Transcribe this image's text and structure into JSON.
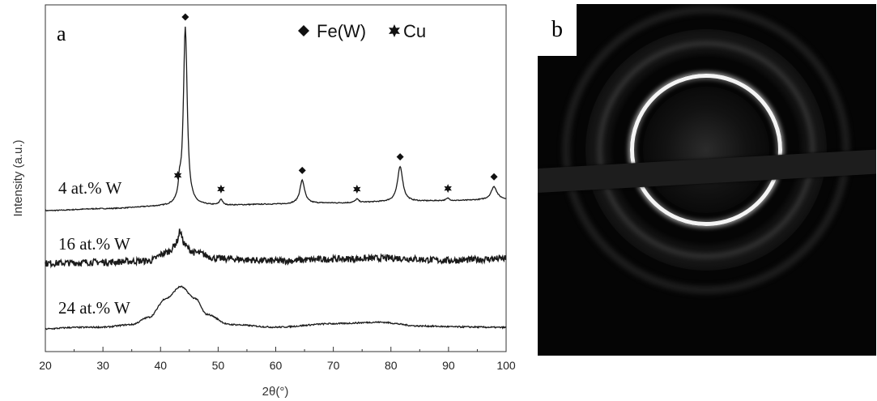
{
  "panel_a": {
    "label": "a",
    "legend": {
      "fe_label": "Fe(W)",
      "cu_label": "Cu",
      "fe_marker": "diamond",
      "cu_marker": "six-point-star"
    },
    "xlabel": "2θ(°)",
    "ylabel": "Intensity (a.u.)",
    "xticks": [
      "20",
      "30",
      "40",
      "50",
      "60",
      "70",
      "80",
      "90",
      "100"
    ],
    "series_labels": [
      "4 at.% W",
      "16 at.% W",
      "24 at.% W"
    ]
  },
  "panel_b": {
    "label": "b",
    "description_icon": "saed-diffraction-pattern"
  },
  "chart_data": {
    "type": "line",
    "title": "",
    "xlabel": "2θ(°)",
    "ylabel": "Intensity (a.u.)",
    "xlim": [
      20,
      100
    ],
    "grid": false,
    "legend_placement": "top-right",
    "series": [
      {
        "name": "4 at.% W",
        "baseline_points": [
          [
            20,
            0.0
          ],
          [
            30,
            0.08
          ],
          [
            40,
            0.17
          ],
          [
            50,
            0.22
          ],
          [
            60,
            0.27
          ],
          [
            70,
            0.32
          ],
          [
            80,
            0.37
          ],
          [
            90,
            0.42
          ],
          [
            100,
            0.48
          ]
        ],
        "peaks": [
          {
            "x": 43.3,
            "height": 0.6,
            "width": 0.25,
            "phase": "Cu"
          },
          {
            "x": 44.3,
            "height": 7.6,
            "width": 0.4,
            "phase": "Fe(W)"
          },
          {
            "x": 50.5,
            "height": 0.25,
            "width": 0.3,
            "phase": "Cu"
          },
          {
            "x": 64.6,
            "height": 1.0,
            "width": 0.5,
            "phase": "Fe(W)"
          },
          {
            "x": 74.1,
            "height": 0.15,
            "width": 0.35,
            "phase": "Cu"
          },
          {
            "x": 81.6,
            "height": 1.5,
            "width": 0.55,
            "phase": "Fe(W)"
          },
          {
            "x": 89.9,
            "height": 0.1,
            "width": 0.35,
            "phase": "Cu"
          },
          {
            "x": 97.9,
            "height": 0.55,
            "width": 0.6,
            "phase": "Fe(W)"
          }
        ]
      },
      {
        "name": "16 at.% W",
        "baseline_points": [
          [
            20,
            0.0
          ],
          [
            30,
            0.05
          ],
          [
            38,
            0.1
          ],
          [
            41,
            0.45
          ],
          [
            43.3,
            0.85
          ],
          [
            46,
            0.45
          ],
          [
            50,
            0.2
          ],
          [
            60,
            0.1
          ],
          [
            70,
            0.18
          ],
          [
            80,
            0.22
          ],
          [
            90,
            0.12
          ],
          [
            100,
            0.2
          ]
        ],
        "peaks": [
          {
            "x": 43.4,
            "height": 0.55,
            "width": 0.3,
            "phase": "Cu"
          }
        ]
      },
      {
        "name": "24 at.% W",
        "baseline_points": [
          [
            20,
            0.0
          ],
          [
            25,
            0.05
          ],
          [
            30,
            0.06
          ],
          [
            35,
            0.15
          ],
          [
            38,
            0.4
          ],
          [
            41,
            1.05
          ],
          [
            43.5,
            1.45
          ],
          [
            46,
            1.05
          ],
          [
            48,
            0.5
          ],
          [
            52,
            0.15
          ],
          [
            60,
            0.06
          ],
          [
            70,
            0.18
          ],
          [
            78,
            0.23
          ],
          [
            85,
            0.1
          ],
          [
            92,
            0.07
          ],
          [
            100,
            0.05
          ]
        ],
        "peaks": []
      }
    ],
    "phase_markers": [
      {
        "phase": "Cu",
        "x": 43.0
      },
      {
        "phase": "Fe(W)",
        "x": 44.3
      },
      {
        "phase": "Cu",
        "x": 50.5
      },
      {
        "phase": "Fe(W)",
        "x": 64.6
      },
      {
        "phase": "Cu",
        "x": 74.1
      },
      {
        "phase": "Fe(W)",
        "x": 81.6
      },
      {
        "phase": "Cu",
        "x": 89.9
      },
      {
        "phase": "Fe(W)",
        "x": 97.9
      }
    ]
  }
}
